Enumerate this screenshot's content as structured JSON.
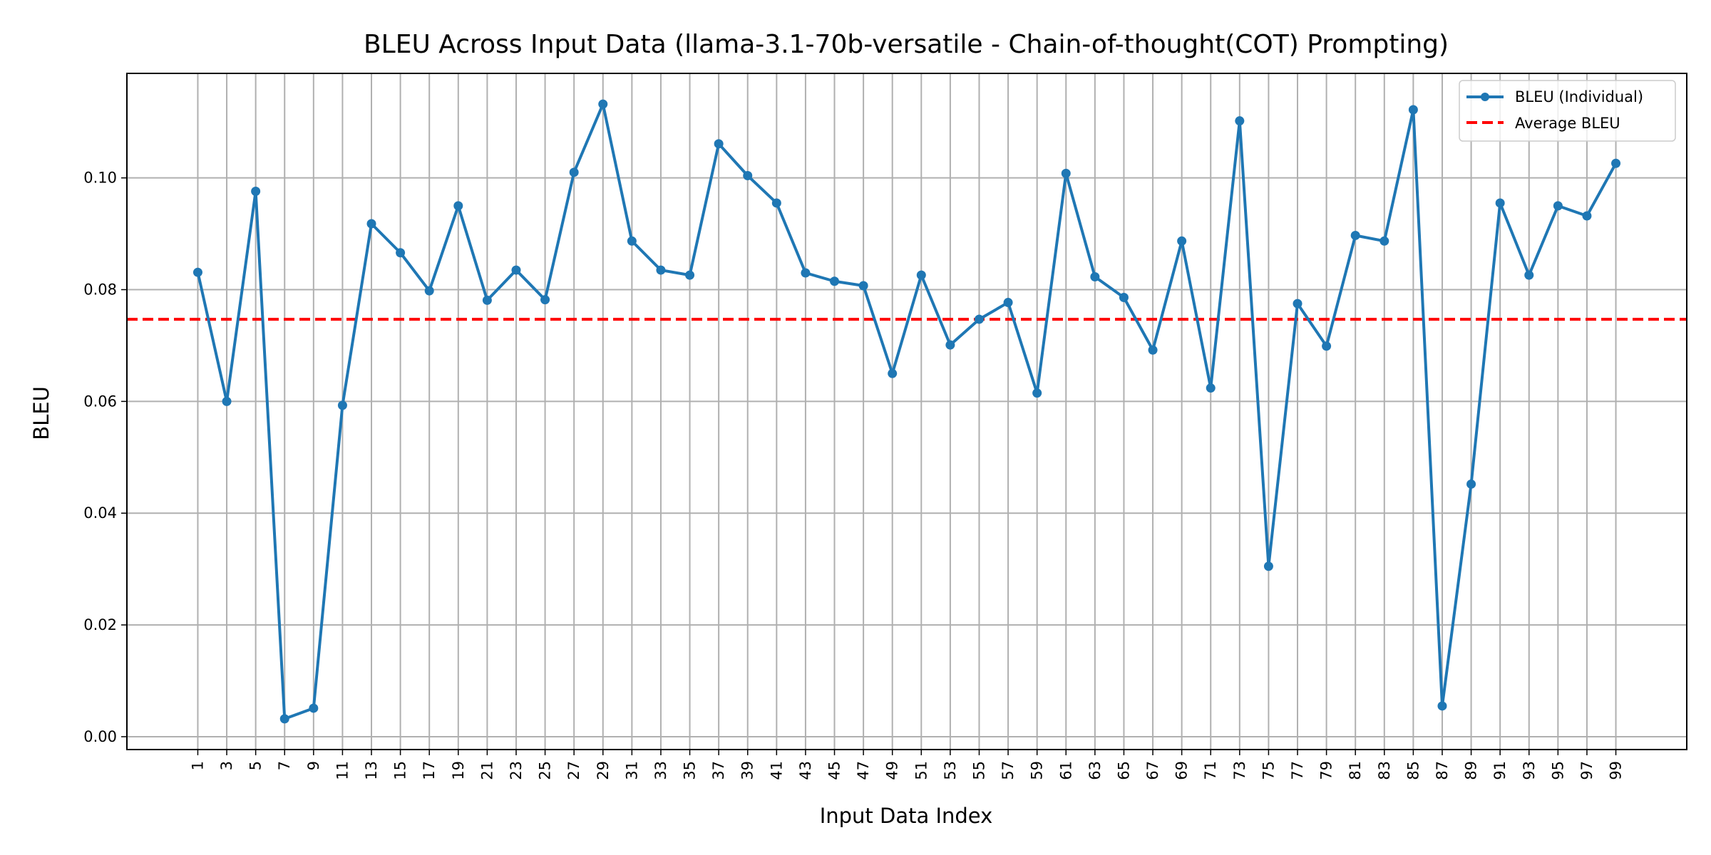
{
  "chart_data": {
    "type": "line",
    "title": "BLEU Across Input Data (llama-3.1-70b-versatile - Chain-of-thought(COT) Prompting)",
    "xlabel": "Input Data Index",
    "ylabel": "BLEU",
    "x": [
      1,
      3,
      5,
      7,
      9,
      11,
      13,
      15,
      17,
      19,
      21,
      23,
      25,
      27,
      29,
      31,
      33,
      35,
      37,
      39,
      41,
      43,
      45,
      47,
      49,
      51,
      53,
      55,
      57,
      59,
      61,
      63,
      65,
      67,
      69,
      71,
      73,
      75,
      77,
      79,
      81,
      83,
      85,
      87,
      89,
      91,
      93,
      95,
      97,
      99
    ],
    "xticks": [
      "1",
      "3",
      "5",
      "7",
      "9",
      "11",
      "13",
      "15",
      "17",
      "19",
      "21",
      "23",
      "25",
      "27",
      "29",
      "31",
      "33",
      "35",
      "37",
      "39",
      "41",
      "43",
      "45",
      "47",
      "49",
      "51",
      "53",
      "55",
      "57",
      "59",
      "61",
      "63",
      "65",
      "67",
      "69",
      "71",
      "73",
      "75",
      "77",
      "79",
      "81",
      "83",
      "85",
      "87",
      "89",
      "91",
      "93",
      "95",
      "97",
      "99"
    ],
    "yticks": [
      "0.00",
      "0.02",
      "0.04",
      "0.06",
      "0.08",
      "0.10"
    ],
    "ytick_values": [
      0.0,
      0.02,
      0.04,
      0.06,
      0.08,
      0.1
    ],
    "xlim": [
      -3.9,
      103.9
    ],
    "ylim": [
      -0.0023,
      0.1187
    ],
    "grid": true,
    "legend_position": "top-right",
    "series": [
      {
        "name": "BLEU (Individual)",
        "color": "#1f77b4",
        "marker": "circle",
        "values": [
          0.0831,
          0.06,
          0.0976,
          0.0032,
          0.0051,
          0.0593,
          0.0918,
          0.0866,
          0.0798,
          0.095,
          0.0781,
          0.0835,
          0.0782,
          0.101,
          0.1132,
          0.0887,
          0.0835,
          0.0826,
          0.1061,
          0.1004,
          0.0955,
          0.083,
          0.0815,
          0.0807,
          0.065,
          0.0826,
          0.0701,
          0.0747,
          0.0777,
          0.0615,
          0.1008,
          0.0823,
          0.0786,
          0.0692,
          0.0887,
          0.0624,
          0.1102,
          0.0305,
          0.0775,
          0.0699,
          0.0897,
          0.0887,
          0.1122,
          0.0055,
          0.0452,
          0.0955,
          0.0826,
          0.095,
          0.0932,
          0.1026
        ]
      }
    ],
    "average": {
      "name": "Average BLEU",
      "color": "#ff0000",
      "style": "dashed",
      "value": 0.0747
    }
  }
}
